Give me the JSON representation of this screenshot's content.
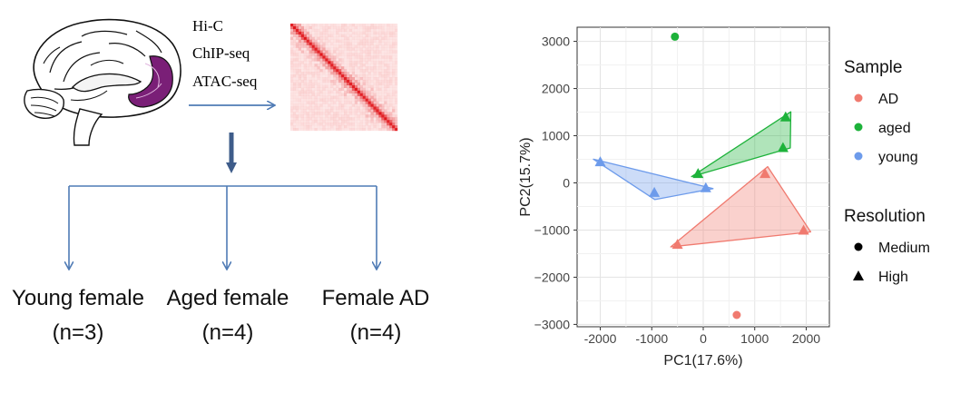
{
  "methods": [
    "Hi-C",
    "ChIP-seq",
    "ATAC-seq"
  ],
  "groups": [
    {
      "name": "Young female",
      "n": "(n=3)"
    },
    {
      "name": "Aged female",
      "n": "(n=4)"
    },
    {
      "name": "Female AD",
      "n": "(n=4)"
    }
  ],
  "colors": {
    "AD": "#F07A6F",
    "aged": "#1DB23A",
    "young": "#6D9BEB",
    "arrow": "#4F7BB5",
    "heatmap": "#E0161B",
    "brain_region": "#7A1F77"
  },
  "chart_data": {
    "type": "scatter",
    "xlabel": "PC1(17.6%)",
    "ylabel": "PC2(15.7%)",
    "xlim": [
      -2450,
      2450
    ],
    "ylim": [
      -3050,
      3300
    ],
    "xticks": [
      -2000,
      -1000,
      0,
      1000,
      2000
    ],
    "yticks": [
      -3000,
      -2000,
      -1000,
      0,
      1000,
      2000,
      3000
    ],
    "xtick_labels": [
      "-2000",
      "-1000",
      "0",
      "1000",
      "2000"
    ],
    "ytick_labels": [
      "−3000",
      "−2000",
      "−1000",
      "0",
      "1000",
      "2000",
      "3000"
    ],
    "grid": true,
    "legend_position": "right",
    "legend": {
      "sample_title": "Sample",
      "samples": [
        "AD",
        "aged",
        "young"
      ],
      "resolution_title": "Resolution",
      "resolutions": [
        "Medium",
        "High"
      ]
    },
    "series": [
      {
        "name": "AD",
        "points": [
          {
            "x": 650,
            "y": -2800,
            "res": "Medium"
          },
          {
            "x": 1200,
            "y": 200,
            "res": "High"
          },
          {
            "x": 1950,
            "y": -1000,
            "res": "High"
          },
          {
            "x": -500,
            "y": -1300,
            "res": "High"
          }
        ]
      },
      {
        "name": "aged",
        "points": [
          {
            "x": -550,
            "y": 3100,
            "res": "Medium"
          },
          {
            "x": 1600,
            "y": 1400,
            "res": "High"
          },
          {
            "x": 1550,
            "y": 750,
            "res": "High"
          },
          {
            "x": -100,
            "y": 200,
            "res": "High"
          }
        ]
      },
      {
        "name": "young",
        "points": [
          {
            "x": -2000,
            "y": 450,
            "res": "High"
          },
          {
            "x": -950,
            "y": -200,
            "res": "High"
          },
          {
            "x": 50,
            "y": -100,
            "res": "High"
          }
        ]
      }
    ]
  }
}
